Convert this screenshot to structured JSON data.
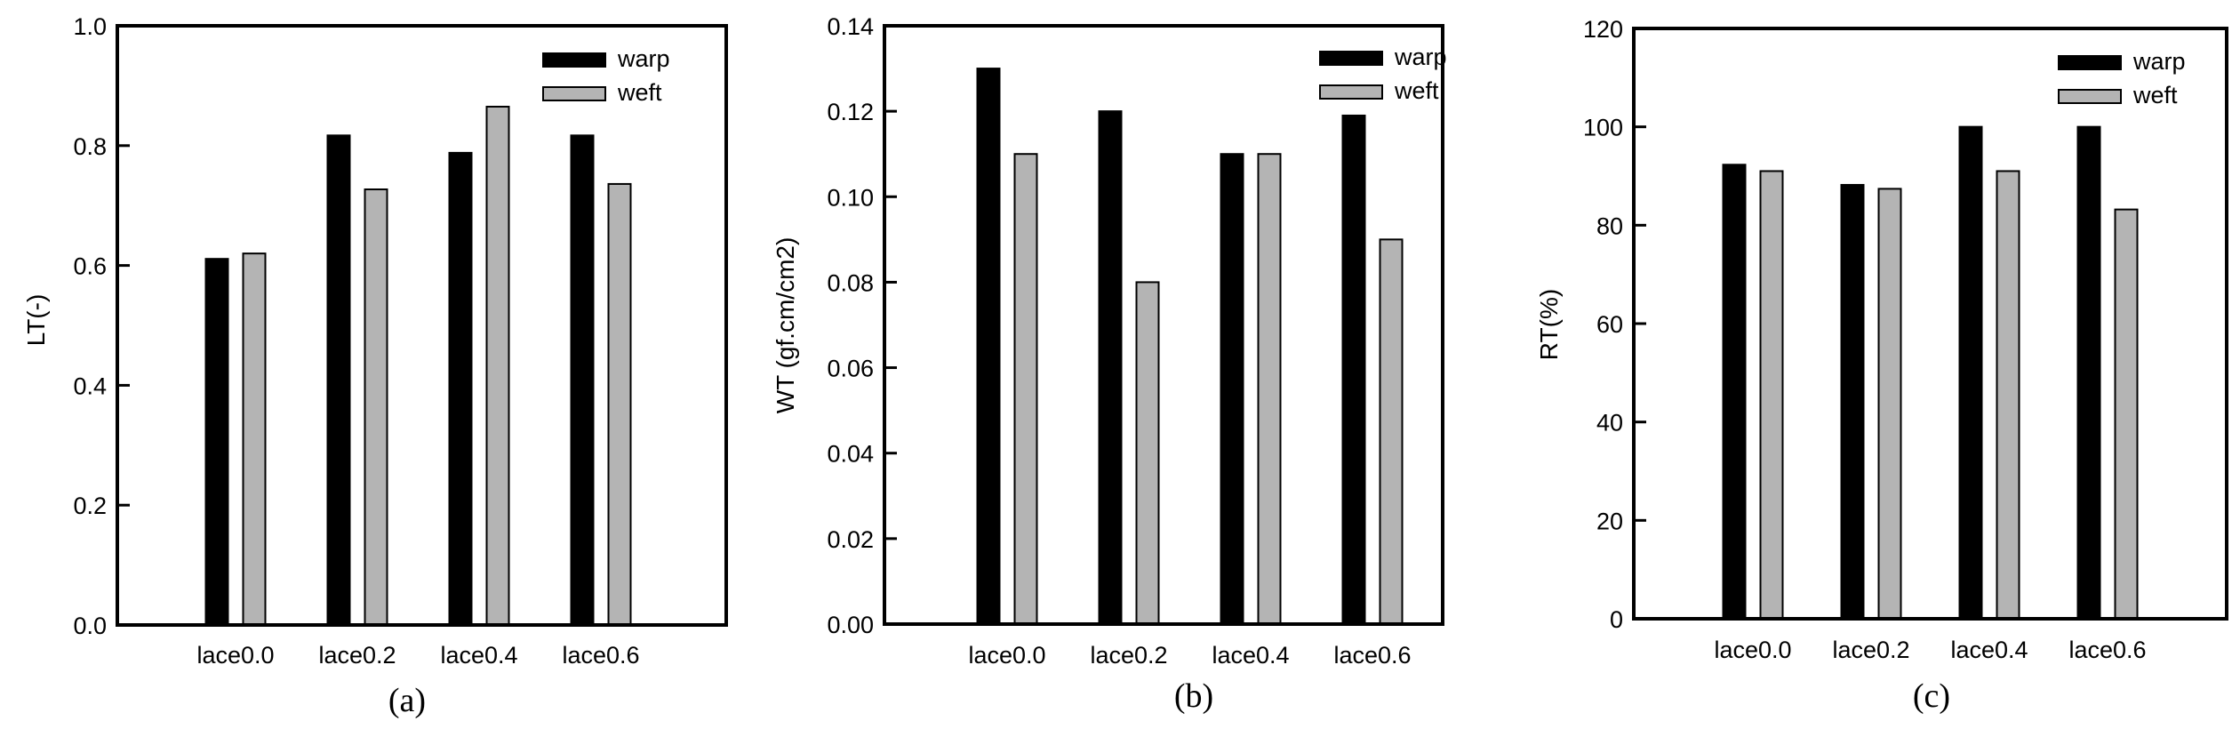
{
  "chart_data": [
    {
      "type": "bar",
      "panel_label": "(a)",
      "ylabel": "LT(-)",
      "xlabel": "",
      "categories": [
        "lace0.0",
        "lace0.2",
        "lace0.4",
        "lace0.6"
      ],
      "ylim": [
        0,
        1.0
      ],
      "yticks": [
        "0.0",
        "0.2",
        "0.4",
        "0.6",
        "0.8",
        "1.0"
      ],
      "ytick_values": [
        0,
        0.2,
        0.4,
        0.6,
        0.8,
        1.0
      ],
      "legend_position": "top-right",
      "grid": false,
      "series": [
        {
          "name": "warp",
          "color": "#000000",
          "values": [
            0.611,
            0.817,
            0.788,
            0.817
          ]
        },
        {
          "name": "weft",
          "color": "#b4b4b4",
          "values": [
            0.62,
            0.727,
            0.865,
            0.736
          ]
        }
      ]
    },
    {
      "type": "bar",
      "panel_label": "(b)",
      "ylabel": "WT (gf.cm/cm2)",
      "xlabel": "",
      "categories": [
        "lace0.0",
        "lace0.2",
        "lace0.4",
        "lace0.6"
      ],
      "ylim": [
        0,
        0.14
      ],
      "yticks": [
        "0.00",
        "0.02",
        "0.04",
        "0.06",
        "0.08",
        "0.10",
        "0.12",
        "0.14"
      ],
      "ytick_values": [
        0,
        0.02,
        0.04,
        0.06,
        0.08,
        0.1,
        0.12,
        0.14
      ],
      "legend_position": "top-right",
      "grid": false,
      "series": [
        {
          "name": "warp",
          "color": "#000000",
          "values": [
            0.13,
            0.12,
            0.11,
            0.119
          ]
        },
        {
          "name": "weft",
          "color": "#b4b4b4",
          "values": [
            0.11,
            0.08,
            0.11,
            0.09
          ]
        }
      ]
    },
    {
      "type": "bar",
      "panel_label": "(c)",
      "ylabel": "RT(%)",
      "xlabel": "",
      "categories": [
        "lace0.0",
        "lace0.2",
        "lace0.4",
        "lace0.6"
      ],
      "ylim": [
        0,
        120
      ],
      "yticks": [
        "0",
        "20",
        "40",
        "60",
        "80",
        "100",
        "120"
      ],
      "ytick_values": [
        0,
        20,
        40,
        60,
        80,
        100,
        120
      ],
      "legend_position": "top-right",
      "grid": false,
      "series": [
        {
          "name": "warp",
          "color": "#000000",
          "values": [
            92.3,
            88.2,
            100.0,
            100.0
          ]
        },
        {
          "name": "weft",
          "color": "#b4b4b4",
          "values": [
            91.0,
            87.4,
            91.0,
            83.2
          ]
        }
      ]
    }
  ]
}
